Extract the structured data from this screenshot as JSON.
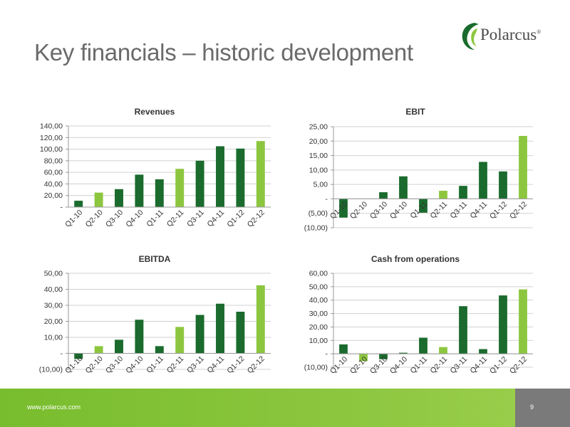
{
  "slide": {
    "title": "Key financials – historic development",
    "logo_text": "Polarcus",
    "logo_mark": "®",
    "footer_url": "www.polarcus.com",
    "page_number": "9"
  },
  "colors": {
    "dark_bar": "#1a6b2d",
    "light_bar": "#8cc63f",
    "grid": "#d0d0d0",
    "text": "#333333"
  },
  "chart_data": [
    {
      "type": "bar",
      "title": "Revenues",
      "categories": [
        "Q1-10",
        "Q2-10",
        "Q3-10",
        "Q4-10",
        "Q1-11",
        "Q2-11",
        "Q3-11",
        "Q4-11",
        "Q1-12",
        "Q2-12"
      ],
      "values": [
        11,
        25,
        31,
        56,
        48,
        66,
        80,
        105,
        101,
        114
      ],
      "highlight": [
        false,
        true,
        false,
        false,
        false,
        true,
        false,
        false,
        false,
        true
      ],
      "ylim": [
        0,
        140
      ],
      "yticks": [
        "-",
        "20,00",
        "40,00",
        "60,00",
        "80,00",
        "100,00",
        "120,00",
        "140,00"
      ],
      "ytick_values": [
        0,
        20,
        40,
        60,
        80,
        100,
        120,
        140
      ],
      "grid": true
    },
    {
      "type": "bar",
      "title": "EBIT",
      "categories": [
        "Q1-10",
        "Q2-10",
        "Q3-10",
        "Q4-10",
        "Q1-11",
        "Q2-11",
        "Q3-11",
        "Q4-11",
        "Q1-12",
        "Q2-12"
      ],
      "values": [
        -6.5,
        0,
        2.3,
        7.8,
        -4.8,
        2.8,
        4.5,
        12.8,
        9.5,
        21.8
      ],
      "highlight": [
        false,
        true,
        false,
        false,
        false,
        true,
        false,
        false,
        false,
        true
      ],
      "ylim": [
        -10,
        25
      ],
      "yticks": [
        "(10,00)",
        "(5,00)",
        "-",
        "5,00",
        "10,00",
        "15,00",
        "20,00",
        "25,00"
      ],
      "ytick_values": [
        -10,
        -5,
        0,
        5,
        10,
        15,
        20,
        25
      ],
      "grid": true
    },
    {
      "type": "bar",
      "title": "EBITDA",
      "categories": [
        "Q1-10",
        "Q2-10",
        "Q3-10",
        "Q4-10",
        "Q1-11",
        "Q2-11",
        "Q3-11",
        "Q4-11",
        "Q1-12",
        "Q2-12"
      ],
      "values": [
        -3.5,
        4.5,
        8.5,
        21,
        4.5,
        16.5,
        24,
        31,
        26,
        42.5
      ],
      "highlight": [
        false,
        true,
        false,
        false,
        false,
        true,
        false,
        false,
        false,
        true
      ],
      "ylim": [
        -10,
        50
      ],
      "yticks": [
        "(10,00)",
        "-",
        "10,00",
        "20,00",
        "30,00",
        "40,00",
        "50,00"
      ],
      "ytick_values": [
        -10,
        0,
        10,
        20,
        30,
        40,
        50
      ],
      "grid": true
    },
    {
      "type": "bar",
      "title": "Cash from operations",
      "categories": [
        "Q1-10",
        "Q2-10",
        "Q3-10",
        "Q4-10",
        "Q1-11",
        "Q2-11",
        "Q3-11",
        "Q4-11",
        "Q1-12",
        "Q2-12"
      ],
      "values": [
        7,
        -5.5,
        -4,
        0.8,
        12,
        5,
        35.5,
        3.5,
        43.5,
        48
      ],
      "highlight": [
        false,
        true,
        false,
        false,
        false,
        true,
        false,
        false,
        false,
        true
      ],
      "ylim": [
        -10,
        60
      ],
      "yticks": [
        "(10,00)",
        "-",
        "10,00",
        "20,00",
        "30,00",
        "40,00",
        "50,00",
        "60,00"
      ],
      "ytick_values": [
        -10,
        0,
        10,
        20,
        30,
        40,
        50,
        60
      ],
      "grid": true
    }
  ]
}
